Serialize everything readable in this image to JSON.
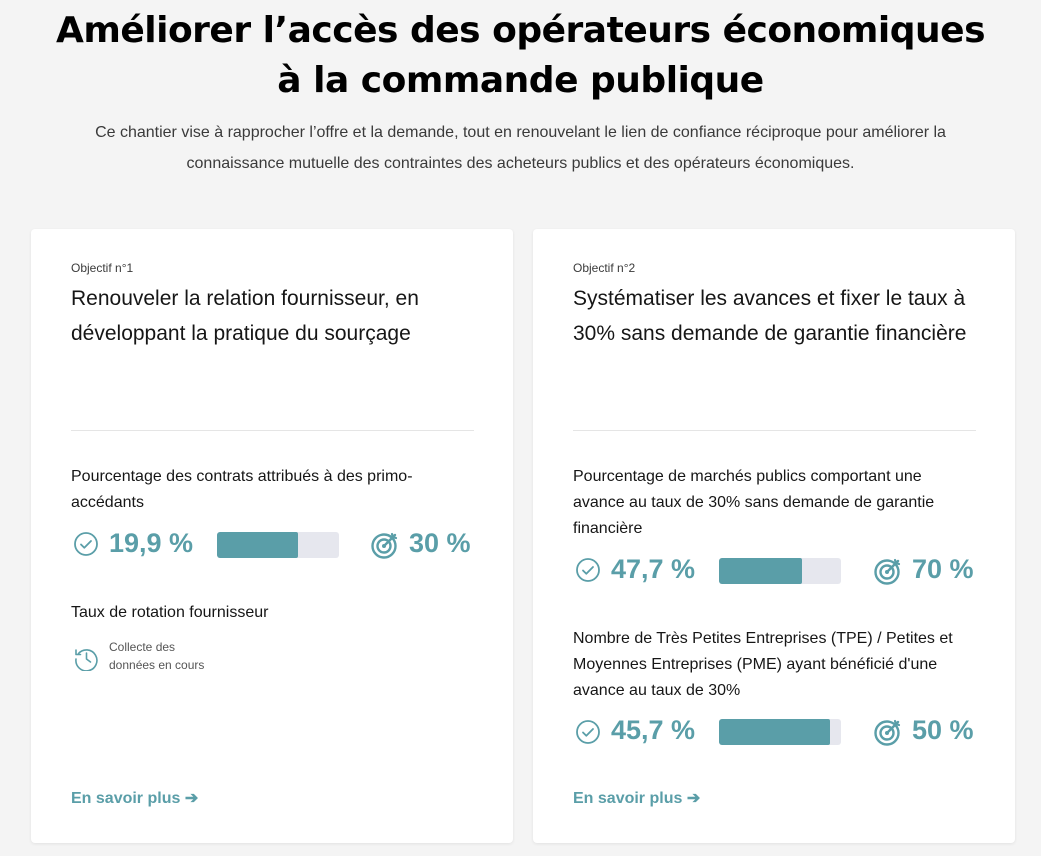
{
  "header": {
    "title_line1": "Améliorer l’accès des opérateurs économiques",
    "title_line2": "à la commande publique",
    "intro": "Ce chantier vise à rapprocher l’offre et la demande, tout en renouvelant le lien de confiance réciproque pour améliorer la connaissance mutuelle des contraintes des acheteurs publics et des opérateurs économiques."
  },
  "cards": [
    {
      "objective_label": "Objectif n°1",
      "title": "Renouveler la relation fournisseur, en développant la pratique du sourçage",
      "indicators": [
        {
          "label": "Pourcentage des contrats attribués à des primo-accédants",
          "value": "19,9 %",
          "target": "30 %",
          "progress_percent": 66
        },
        {
          "label": "Taux de rotation fournisseur",
          "pending_text": "Collecte des données en cours",
          "pending_icon": "clock-history-icon"
        }
      ],
      "link": "En savoir plus ➔"
    },
    {
      "objective_label": "Objectif n°2",
      "title": "Systématiser les avances et fixer le taux à 30% sans demande de garantie financière",
      "indicators": [
        {
          "label": "Pourcentage de marchés publics comportant une avance au taux de 30% sans demande de garantie financière",
          "value": "47,7 %",
          "target": "70 %",
          "progress_percent": 68
        },
        {
          "label": "Nombre de Très Petites Entreprises (TPE) / Petites et Moyennes Entreprises (PME) ayant bénéficié d'une avance au taux de 30%",
          "value": "45,7 %",
          "target": "50 %",
          "progress_percent": 91
        }
      ],
      "link": "En savoir plus ➔"
    }
  ],
  "icons": {
    "current_value": "check-circle-icon",
    "target_value": "target-icon"
  },
  "colors": {
    "accent": "#5a9ea8",
    "bar_track": "#e6e7ee",
    "background": "#f4f4f4",
    "card": "#ffffff"
  }
}
